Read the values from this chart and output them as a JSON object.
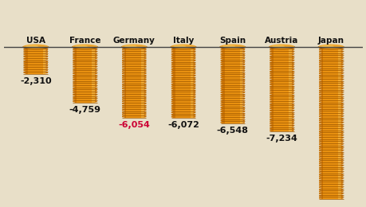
{
  "countries": [
    "USA",
    "France",
    "Germany",
    "Italy",
    "Spain",
    "Austria",
    "Japan"
  ],
  "values": [
    -2310,
    -4759,
    -6054,
    -6072,
    -6548,
    -7234,
    -13000
  ],
  "display_values": [
    "-2,310",
    "-4,759",
    "-6,054",
    "-6,072",
    "-6,548",
    "-7,234",
    ""
  ],
  "label_colors": [
    "#111111",
    "#111111",
    "#cc0033",
    "#111111",
    "#111111",
    "#111111",
    "#111111"
  ],
  "background_color": "#e8dfc8",
  "coin_body": "#e89010",
  "coin_side": "#d07808",
  "coin_top": "#f0a830",
  "coin_highlight": "#ffd870",
  "coin_shadow": "#b86000",
  "coin_line": "#a05800",
  "ylim_min": -13500,
  "ylim_max": 800,
  "bar_width": 0.52,
  "n_ridges_per_unit": 0.0055
}
